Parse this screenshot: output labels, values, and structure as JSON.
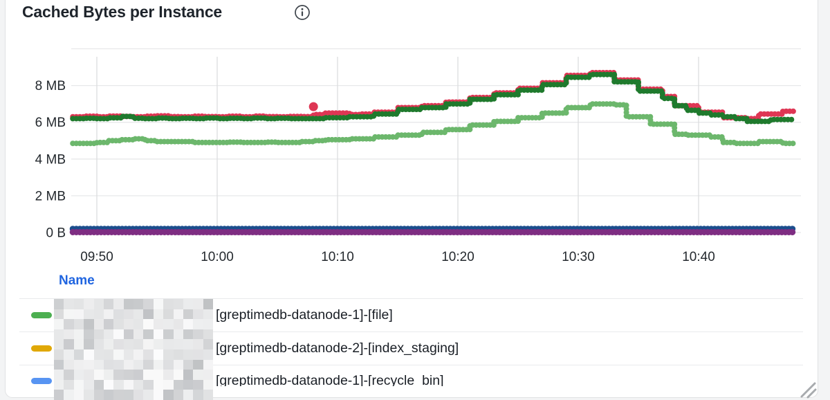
{
  "panel": {
    "title": "Cached Bytes per Instance",
    "info_icon": "info-circle-icon"
  },
  "chart_data": {
    "type": "line",
    "style": "stepped-dotted-points",
    "title": "Cached Bytes per Instance",
    "xlabel": "",
    "ylabel": "",
    "y_unit": "bytes",
    "ylim": [
      0,
      10
    ],
    "grid": true,
    "x_time_start_minute_offset": 0,
    "x_minutes_total": 60,
    "x_ticks": [
      {
        "t": 2,
        "label": "09:50"
      },
      {
        "t": 12,
        "label": "10:00"
      },
      {
        "t": 22,
        "label": "10:10"
      },
      {
        "t": 32,
        "label": "10:20"
      },
      {
        "t": 42,
        "label": "10:30"
      },
      {
        "t": 52,
        "label": "10:40"
      }
    ],
    "y_ticks": [
      {
        "v": 8,
        "label": "8 MB"
      },
      {
        "v": 6,
        "label": "6 MB"
      },
      {
        "v": 4,
        "label": "4 MB"
      },
      {
        "v": 2,
        "label": "2 MB"
      },
      {
        "v": 0,
        "label": "0 B"
      }
    ],
    "y_gridline_values": [
      10,
      8,
      6,
      4,
      2,
      0
    ],
    "series": [
      {
        "name": "red",
        "color": "#DE3654",
        "unit": "MB",
        "values": [
          6.3,
          6.33,
          6.3,
          6.34,
          6.32,
          6.3,
          6.33,
          6.35,
          6.31,
          6.3,
          6.33,
          6.31,
          6.3,
          6.33,
          6.3,
          6.34,
          6.31,
          6.3,
          6.32,
          6.31,
          6.42,
          6.5,
          6.5,
          6.42,
          6.45,
          6.55,
          6.55,
          6.8,
          6.8,
          6.9,
          6.9,
          7.1,
          7.1,
          7.35,
          7.35,
          7.6,
          7.6,
          7.85,
          7.85,
          8.15,
          8.15,
          8.55,
          8.55,
          8.7,
          8.7,
          8.3,
          8.3,
          7.8,
          7.8,
          7.4,
          6.9,
          6.9,
          6.55,
          6.55,
          6.25,
          6.25,
          6.2,
          6.45,
          6.45,
          6.6,
          6.6
        ]
      },
      {
        "name": "dark-green",
        "color": "#1F7A2D",
        "unit": "MB",
        "values": [
          6.2,
          6.22,
          6.2,
          6.24,
          6.32,
          6.22,
          6.2,
          6.23,
          6.2,
          6.22,
          6.2,
          6.23,
          6.2,
          6.22,
          6.2,
          6.23,
          6.2,
          6.22,
          6.2,
          6.2,
          6.2,
          6.25,
          6.25,
          6.3,
          6.3,
          6.45,
          6.45,
          6.7,
          6.7,
          6.8,
          6.8,
          7.0,
          7.0,
          7.25,
          7.25,
          7.5,
          7.5,
          7.75,
          7.75,
          8.05,
          8.05,
          8.45,
          8.45,
          8.6,
          8.6,
          8.2,
          8.2,
          7.7,
          7.7,
          7.3,
          6.9,
          6.65,
          6.5,
          6.4,
          6.3,
          6.2,
          6.05,
          6.05,
          6.15,
          6.15,
          6.15
        ]
      },
      {
        "name": "light-green",
        "color": "#6CB76C",
        "unit": "MB",
        "values": [
          4.85,
          4.85,
          4.9,
          5.0,
          5.05,
          5.1,
          5.0,
          4.95,
          4.95,
          4.95,
          4.9,
          4.9,
          4.9,
          4.92,
          4.9,
          4.9,
          4.92,
          4.9,
          4.9,
          4.95,
          5.0,
          5.05,
          5.05,
          5.1,
          5.1,
          5.2,
          5.2,
          5.3,
          5.3,
          5.45,
          5.45,
          5.6,
          5.6,
          5.85,
          5.85,
          6.05,
          6.05,
          6.25,
          6.25,
          6.5,
          6.5,
          6.8,
          6.8,
          7.0,
          7.0,
          6.95,
          6.3,
          6.3,
          5.9,
          5.9,
          5.35,
          5.3,
          5.3,
          5.2,
          4.9,
          4.85,
          4.85,
          4.95,
          4.95,
          4.85,
          4.85
        ]
      },
      {
        "name": "navy-blue",
        "color": "#1C4E8D",
        "unit": "MB",
        "flat": 0.2
      },
      {
        "name": "purple",
        "color": "#7E2D82",
        "unit": "MB",
        "flat": 0.02
      }
    ],
    "outlier_point": {
      "series": "red",
      "t": 20,
      "value": 6.85
    }
  },
  "legend": {
    "header": "Name",
    "rows": [
      {
        "swatch_color": "#4CAF50",
        "redacted_prefix": true,
        "label": "[greptimedb-datanode-1]-[file]"
      },
      {
        "swatch_color": "#E0A806",
        "redacted_prefix": true,
        "label": "[greptimedb-datanode-2]-[index_staging]"
      },
      {
        "swatch_color": "#5794F2",
        "redacted_prefix": true,
        "label": "[greptimedb-datanode-1]-[recycle_bin]"
      }
    ]
  },
  "colors": {
    "panel_bg": "#FFFFFF",
    "page_bg": "#F3F4F5",
    "panel_border": "#E0E1E3",
    "title_text": "#1E242B",
    "axis_text": "#24292E",
    "gridline_h": "#E7E8EA",
    "gridline_v": "#DCDDDF",
    "legend_header_blue": "#2065E0",
    "legend_text": "#1A1F26",
    "separator": "#E9EAEC",
    "resize_handle": "#A8ABAE"
  }
}
